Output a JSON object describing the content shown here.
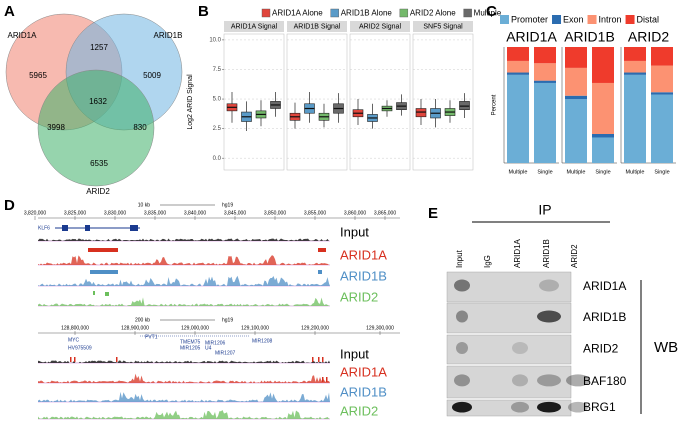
{
  "panels": [
    "A",
    "B",
    "C",
    "D",
    "E"
  ],
  "venn": {
    "sets": [
      "ARID1A",
      "ARID1B",
      "ARID2"
    ],
    "regions": [
      5965,
      1257,
      5009,
      3998,
      1632,
      830,
      6535
    ]
  },
  "chart_data": [
    {
      "type": "box",
      "ylabel": "Log2 ARID Signal",
      "facets": [
        "ARID1A Signal",
        "ARID1B Signal",
        "ARID2 Signal",
        "SNF5 Signal"
      ],
      "ylim": [
        -1,
        10.5
      ],
      "yticks": [
        {
          "value": 0,
          "label": "0.0"
        },
        2.5,
        {
          "value": 5,
          "label": "5.0"
        },
        7.5,
        {
          "value": 10,
          "label": "10.0"
        }
      ],
      "grid": true,
      "series": [
        {
          "name": "ARID1A Alone",
          "color": "#e0453c",
          "boxes": [
            {
              "low": 3.0,
              "q1": 4.0,
              "median": 4.3,
              "q3": 4.6,
              "high": 5.6
            },
            {
              "low": 2.5,
              "q1": 3.2,
              "median": 3.5,
              "q3": 3.8,
              "high": 4.7
            },
            {
              "low": 2.8,
              "q1": 3.5,
              "median": 3.8,
              "q3": 4.1,
              "high": 5.0
            },
            {
              "low": 2.8,
              "q1": 3.5,
              "median": 3.9,
              "q3": 4.2,
              "high": 5.0
            }
          ]
        },
        {
          "name": "ARID1B Alone",
          "color": "#5a9bc8",
          "boxes": [
            {
              "low": 2.3,
              "q1": 3.1,
              "median": 3.5,
              "q3": 3.9,
              "high": 4.8
            },
            {
              "low": 3.0,
              "q1": 3.8,
              "median": 4.2,
              "q3": 4.6,
              "high": 5.6
            },
            {
              "low": 2.5,
              "q1": 3.1,
              "median": 3.4,
              "q3": 3.7,
              "high": 4.6
            },
            {
              "low": 2.6,
              "q1": 3.4,
              "median": 3.8,
              "q3": 4.2,
              "high": 5.0
            }
          ]
        },
        {
          "name": "ARID2 Alone",
          "color": "#74b96b",
          "boxes": [
            {
              "low": 2.7,
              "q1": 3.4,
              "median": 3.7,
              "q3": 4.0,
              "high": 4.9
            },
            {
              "low": 2.6,
              "q1": 3.2,
              "median": 3.5,
              "q3": 3.8,
              "high": 4.6
            },
            {
              "low": 3.5,
              "q1": 4.0,
              "median": 4.2,
              "q3": 4.4,
              "high": 4.9
            },
            {
              "low": 3.0,
              "q1": 3.6,
              "median": 3.9,
              "q3": 4.2,
              "high": 4.9
            }
          ]
        },
        {
          "name": "Multiple",
          "color": "#6a6a6a",
          "boxes": [
            {
              "low": 3.5,
              "q1": 4.2,
              "median": 4.5,
              "q3": 4.8,
              "high": 5.6
            },
            {
              "low": 3.0,
              "q1": 3.8,
              "median": 4.2,
              "q3": 4.6,
              "high": 5.5
            },
            {
              "low": 3.6,
              "q1": 4.1,
              "median": 4.4,
              "q3": 4.7,
              "high": 5.4
            },
            {
              "low": 3.4,
              "q1": 4.1,
              "median": 4.4,
              "q3": 4.8,
              "high": 5.5
            }
          ]
        }
      ]
    },
    {
      "type": "stacked_bar",
      "ylabel": "Percent",
      "ylim": [
        0,
        100
      ],
      "facets": [
        "ARID1A",
        "ARID1B",
        "ARID2"
      ],
      "categories": [
        "Multiple",
        "Single",
        "Multiple",
        "Single",
        "Multiple",
        "Single"
      ],
      "series": [
        {
          "name": "Promoter",
          "color": "#6baed6",
          "values": [
            76,
            69,
            55,
            22,
            76,
            59
          ]
        },
        {
          "name": "Exon",
          "color": "#2b6cb0",
          "values": [
            2,
            2,
            3,
            3,
            2,
            2
          ]
        },
        {
          "name": "Intron",
          "color": "#fc9272",
          "values": [
            10,
            15,
            24,
            44,
            10,
            23
          ]
        },
        {
          "name": "Distal",
          "color": "#ef3b2c",
          "values": [
            12,
            14,
            18,
            31,
            12,
            16
          ]
        }
      ]
    }
  ],
  "tracks": {
    "top": {
      "scale": "10 kb",
      "genome": "hg19",
      "coords": [
        "3,820,000",
        "3,825,000",
        "3,830,000",
        "3,835,000",
        "3,840,000",
        "3,845,000",
        "3,850,000",
        "3,855,000",
        "3,860,000",
        "3,865,000"
      ],
      "genes": [
        "KLF6"
      ],
      "labels": [
        "Input",
        "ARID1A",
        "ARID1B",
        "ARID2"
      ]
    },
    "bottom": {
      "scale": "200 kb",
      "genome": "hg19",
      "coords": [
        "128,800,000",
        "128,900,000",
        "129,000,000",
        "129,100,000",
        "129,200,000",
        "129,300,000"
      ],
      "genes": [
        "MYC",
        "HV975509",
        "PVT1",
        "TMEM75",
        "MIR1205",
        "MIR1206",
        "U4",
        "MIR1207",
        "MIR1208"
      ],
      "labels": [
        "Input",
        "ARID1A",
        "ARID1B",
        "ARID2"
      ]
    }
  },
  "blot": {
    "ip": "IP",
    "columns": [
      "Input",
      "IgG",
      "ARID1A",
      "ARID1B",
      "ARID2"
    ],
    "rows": [
      "ARID1A",
      "ARID1B",
      "ARID2",
      "BAF180",
      "BRG1"
    ],
    "method": "WB"
  }
}
